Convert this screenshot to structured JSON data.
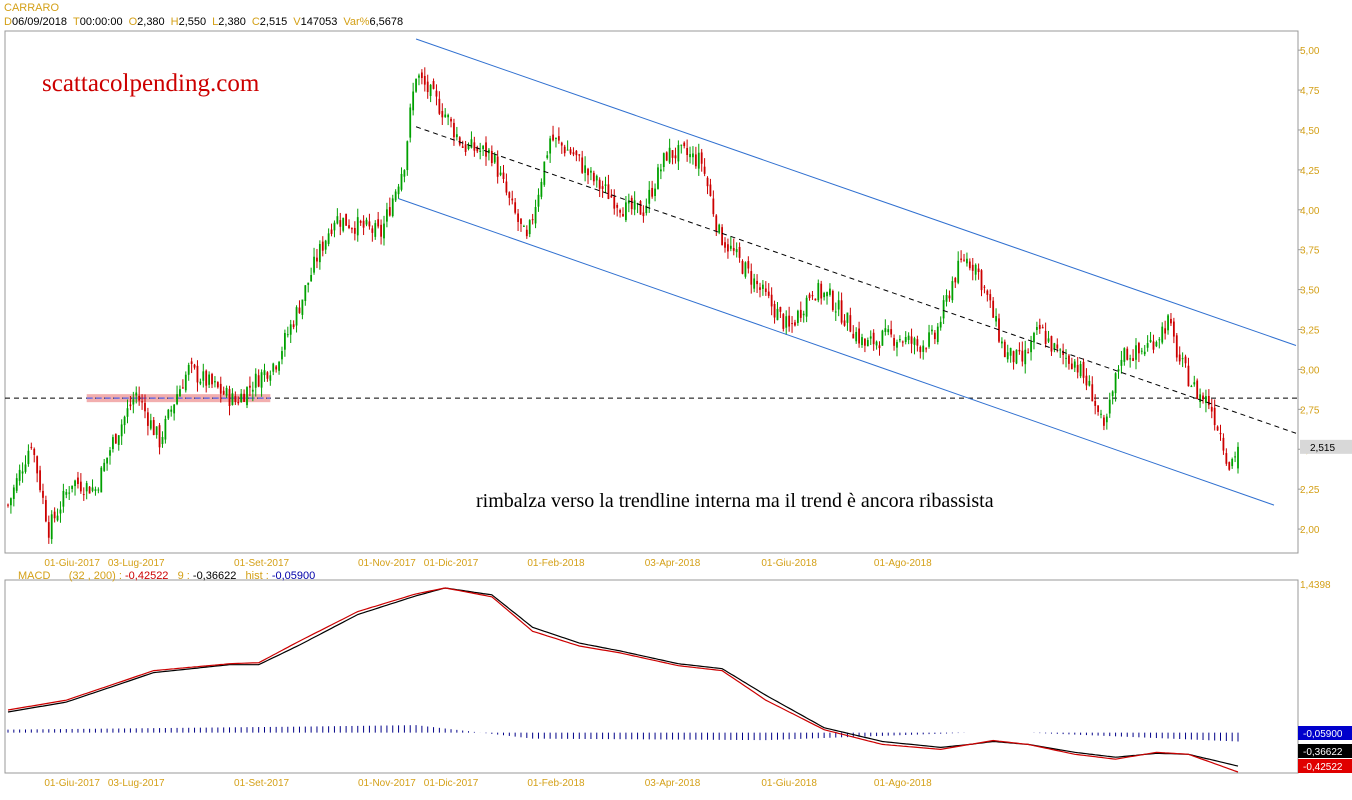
{
  "header": {
    "symbol": "CARRARO",
    "fields": [
      {
        "label": "D",
        "value": "06/09/2018"
      },
      {
        "label": "T",
        "value": "00:00:00"
      },
      {
        "label": "O",
        "value": "2,380"
      },
      {
        "label": "H",
        "value": "2,550"
      },
      {
        "label": "L",
        "value": "2,380"
      },
      {
        "label": "C",
        "value": "2,515"
      },
      {
        "label": "V",
        "value": "147053"
      },
      {
        "label": "Var%",
        "value": "6,5678"
      }
    ]
  },
  "annotations": {
    "watermark": "scattacolpending.com",
    "note": "rimbalza verso la trendline interna ma il trend è ancora ribassista"
  },
  "macd_header": {
    "name": "MACD",
    "params": "(32 , 200) :",
    "macd_value": "-0,42522",
    "signal_label": "9 :",
    "signal_value": "-0,36622",
    "hist_label": "hist :",
    "hist_value": "-0,05900"
  },
  "colors": {
    "up": "#00a000",
    "down": "#cc0000",
    "channel": "#3070d0",
    "axis_text": "#d4a017",
    "support_band": "#f0a0a0",
    "support_line": "#7070e0",
    "macd_line": "#cc0000",
    "signal_line": "#000000",
    "histogram": "#000088"
  },
  "chart_data": [
    {
      "type": "candlestick",
      "title": "CARRARO",
      "x_tick_labels": [
        "01-Giu-2017",
        "03-Lug-2017",
        "01-Set-2017",
        "01-Nov-2017",
        "01-Dic-2017",
        "01-Feb-2018",
        "03-Apr-2018",
        "01-Giu-2018",
        "01-Ago-2018"
      ],
      "y_tick_labels": [
        "5,00",
        "4,75",
        "4,50",
        "4,25",
        "4,00",
        "3,75",
        "3,50",
        "3,25",
        "3,00",
        "2,75",
        "2,50",
        "2,25",
        "2,00"
      ],
      "ylim": [
        1.85,
        5.12
      ],
      "last_price_label": "2,515",
      "last_close": 2.515,
      "close_path_keypoints": [
        [
          0,
          2.15
        ],
        [
          8,
          2.55
        ],
        [
          14,
          2.0
        ],
        [
          22,
          2.3
        ],
        [
          30,
          2.25
        ],
        [
          36,
          2.55
        ],
        [
          44,
          2.85
        ],
        [
          52,
          2.55
        ],
        [
          58,
          2.85
        ],
        [
          62,
          3.0
        ],
        [
          70,
          2.9
        ],
        [
          78,
          2.8
        ],
        [
          86,
          2.95
        ],
        [
          92,
          3.05
        ],
        [
          100,
          3.4
        ],
        [
          106,
          3.7
        ],
        [
          112,
          3.95
        ],
        [
          120,
          3.9
        ],
        [
          128,
          3.85
        ],
        [
          136,
          4.3
        ],
        [
          138,
          4.6
        ],
        [
          140,
          4.85
        ],
        [
          146,
          4.7
        ],
        [
          150,
          4.6
        ],
        [
          156,
          4.4
        ],
        [
          166,
          4.35
        ],
        [
          172,
          4.05
        ],
        [
          178,
          3.8
        ],
        [
          186,
          4.45
        ],
        [
          194,
          4.35
        ],
        [
          200,
          4.2
        ],
        [
          206,
          4.1
        ],
        [
          212,
          4.0
        ],
        [
          218,
          4.0
        ],
        [
          226,
          4.35
        ],
        [
          232,
          4.35
        ],
        [
          238,
          4.3
        ],
        [
          244,
          3.85
        ],
        [
          250,
          3.7
        ],
        [
          256,
          3.55
        ],
        [
          262,
          3.4
        ],
        [
          268,
          3.25
        ],
        [
          276,
          3.5
        ],
        [
          282,
          3.45
        ],
        [
          288,
          3.3
        ],
        [
          294,
          3.15
        ],
        [
          300,
          3.2
        ],
        [
          306,
          3.2
        ],
        [
          312,
          3.15
        ],
        [
          318,
          3.2
        ],
        [
          324,
          3.55
        ],
        [
          328,
          3.7
        ],
        [
          332,
          3.65
        ],
        [
          336,
          3.45
        ],
        [
          342,
          3.1
        ],
        [
          348,
          3.05
        ],
        [
          354,
          3.25
        ],
        [
          360,
          3.1
        ],
        [
          366,
          3.05
        ],
        [
          372,
          2.85
        ],
        [
          376,
          2.6
        ],
        [
          382,
          3.1
        ],
        [
          388,
          3.1
        ],
        [
          394,
          3.2
        ],
        [
          398,
          3.3
        ],
        [
          402,
          3.05
        ],
        [
          408,
          2.85
        ],
        [
          412,
          2.8
        ],
        [
          416,
          2.6
        ],
        [
          419,
          2.4
        ],
        [
          422,
          2.515
        ]
      ],
      "channel": {
        "upper_line": [
          [
            140,
            5.07
          ],
          [
            423,
            3.15
          ]
        ],
        "lower_line": [
          [
            134,
            4.07
          ],
          [
            430,
            2.15
          ]
        ],
        "mid_dashed": [
          [
            140,
            4.52
          ],
          [
            430,
            2.6
          ]
        ]
      },
      "support_level": 2.82,
      "support_band_range": [
        27,
        90
      ]
    },
    {
      "type": "line",
      "title": "MACD",
      "x_tick_labels": [
        "01-Giu-2017",
        "03-Lug-2017",
        "01-Set-2017",
        "01-Nov-2017",
        "01-Dic-2017",
        "01-Feb-2018",
        "03-Apr-2018",
        "01-Giu-2018",
        "01-Ago-2018"
      ],
      "y_tick_labels": [
        "1,4398"
      ],
      "ylim": [
        -0.43,
        1.47
      ],
      "value_labels": [
        "-0,05900",
        "-0,36622",
        "-0,42522"
      ],
      "series": [
        {
          "name": "MACD",
          "values_keypoints": [
            [
              0,
              0.2
            ],
            [
              20,
              0.3
            ],
            [
              50,
              0.6
            ],
            [
              76,
              0.67
            ],
            [
              86,
              0.68
            ],
            [
              100,
              0.9
            ],
            [
              120,
              1.2
            ],
            [
              140,
              1.38
            ],
            [
              150,
              1.44
            ],
            [
              166,
              1.35
            ],
            [
              180,
              1.0
            ],
            [
              196,
              0.85
            ],
            [
              210,
              0.78
            ],
            [
              230,
              0.65
            ],
            [
              245,
              0.6
            ],
            [
              260,
              0.3
            ],
            [
              280,
              0.0
            ],
            [
              300,
              -0.15
            ],
            [
              320,
              -0.2
            ],
            [
              330,
              -0.15
            ],
            [
              338,
              -0.11
            ],
            [
              350,
              -0.15
            ],
            [
              366,
              -0.25
            ],
            [
              380,
              -0.3
            ],
            [
              394,
              -0.23
            ],
            [
              405,
              -0.25
            ],
            [
              422,
              -0.43
            ]
          ]
        },
        {
          "name": "Signal",
          "values_keypoints": [
            [
              0,
              0.18
            ],
            [
              20,
              0.28
            ],
            [
              50,
              0.58
            ],
            [
              76,
              0.66
            ],
            [
              86,
              0.66
            ],
            [
              100,
              0.86
            ],
            [
              120,
              1.17
            ],
            [
              140,
              1.36
            ],
            [
              150,
              1.44
            ],
            [
              166,
              1.37
            ],
            [
              180,
              1.04
            ],
            [
              196,
              0.88
            ],
            [
              210,
              0.8
            ],
            [
              230,
              0.67
            ],
            [
              245,
              0.62
            ],
            [
              260,
              0.35
            ],
            [
              280,
              0.02
            ],
            [
              300,
              -0.12
            ],
            [
              320,
              -0.18
            ],
            [
              330,
              -0.15
            ],
            [
              338,
              -0.12
            ],
            [
              350,
              -0.15
            ],
            [
              366,
              -0.23
            ],
            [
              380,
              -0.28
            ],
            [
              394,
              -0.24
            ],
            [
              405,
              -0.25
            ],
            [
              422,
              -0.37
            ]
          ]
        },
        {
          "name": "hist",
          "values_keypoints": [
            [
              0,
              0.02
            ],
            [
              100,
              0.04
            ],
            [
              140,
              0.05
            ],
            [
              180,
              -0.04
            ],
            [
              260,
              -0.05
            ],
            [
              330,
              0.0
            ],
            [
              350,
              0.0
            ],
            [
              422,
              -0.059
            ]
          ]
        }
      ]
    }
  ]
}
